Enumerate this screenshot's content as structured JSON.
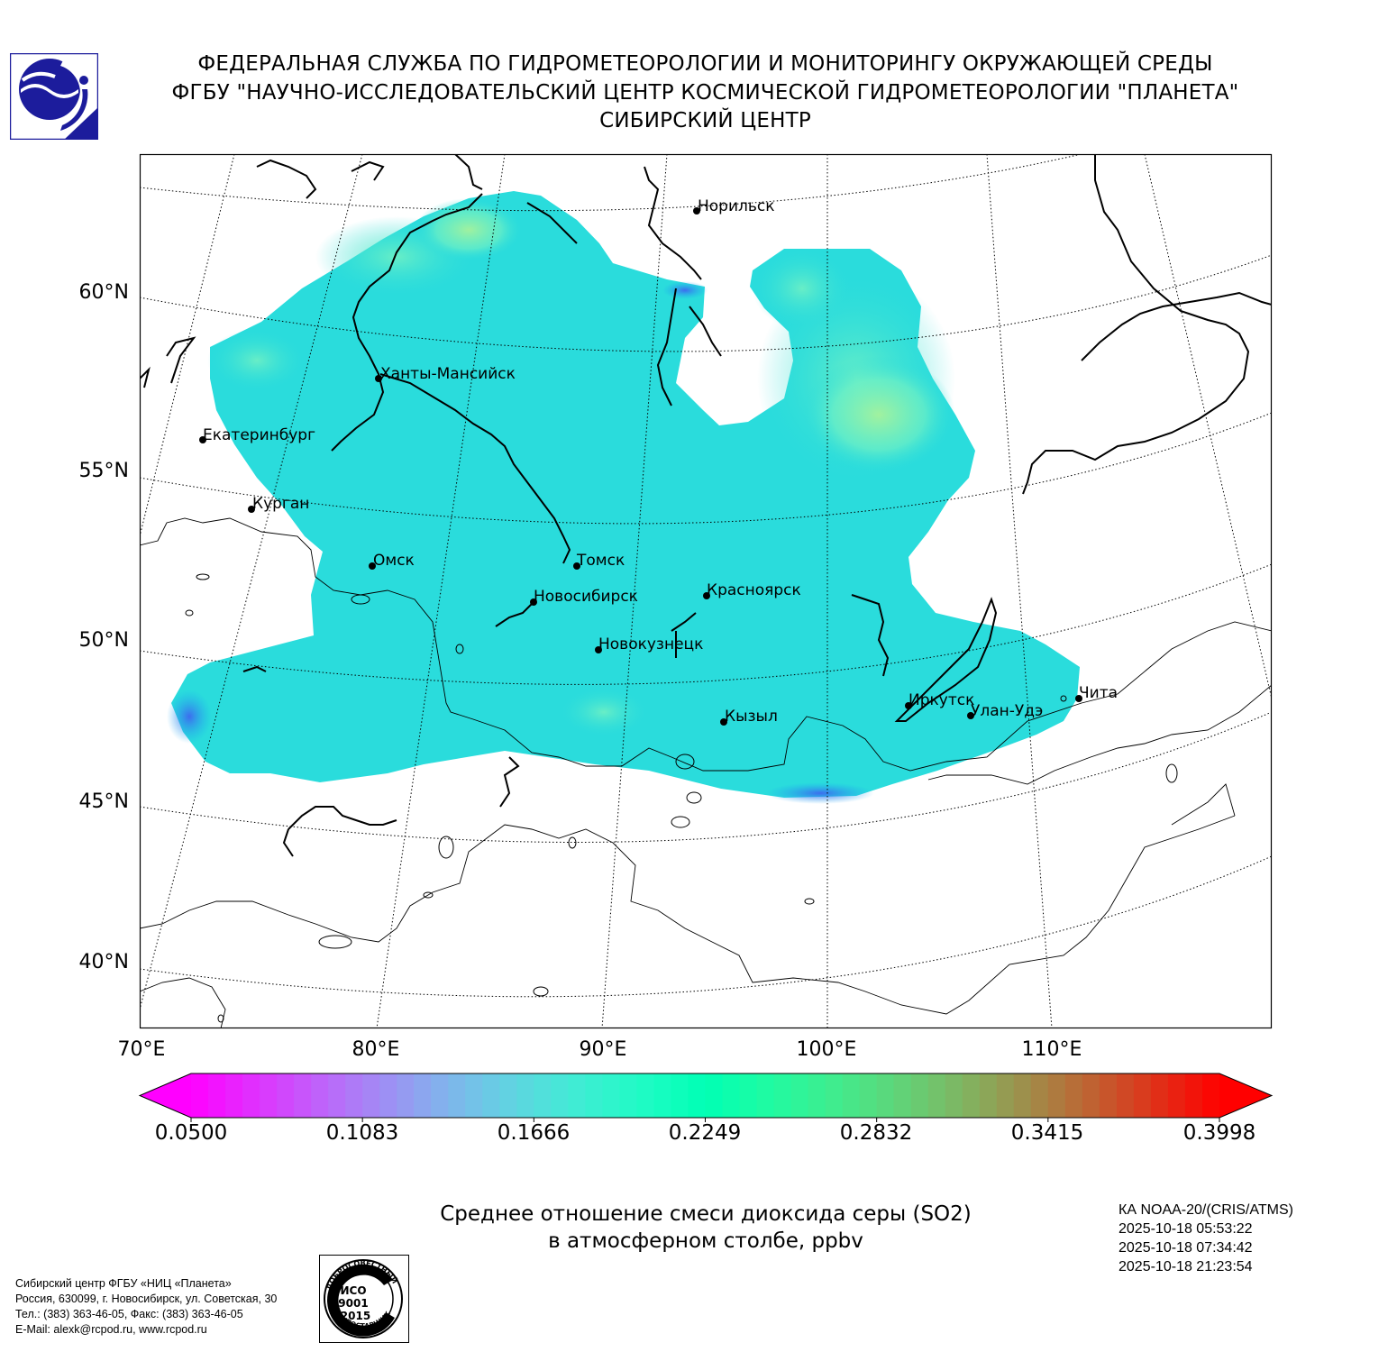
{
  "header": {
    "line1": "ФЕДЕРАЛЬНАЯ СЛУЖБА ПО ГИДРОМЕТЕОРОЛОГИИ И МОНИТОРИНГУ ОКРУЖАЮЩЕЙ СРЕДЫ",
    "line2": "ФГБУ \"НАУЧНО-ИССЛЕДОВАТЕЛЬСКИЙ ЦЕНТР КОСМИЧЕСКОЙ ГИДРОМЕТЕОРОЛОГИИ \"ПЛАНЕТА\"",
    "line3": "СИБИРСКИЙ ЦЕНТР"
  },
  "logo": {
    "icon": "planeta-logo-icon",
    "color": "#1c1c9c"
  },
  "map": {
    "lat_labels": [
      "60°N",
      "55°N",
      "50°N",
      "45°N",
      "40°N"
    ],
    "lon_labels": [
      "70°E",
      "80°E",
      "90°E",
      "100°E",
      "110°E"
    ],
    "cities": [
      {
        "name": "Норильск"
      },
      {
        "name": "Ханты-Мансийск"
      },
      {
        "name": "Екатеринбург"
      },
      {
        "name": "Курган"
      },
      {
        "name": "Омск"
      },
      {
        "name": "Томск"
      },
      {
        "name": "Новосибирск"
      },
      {
        "name": "Красноярск"
      },
      {
        "name": "Новокузнецк"
      },
      {
        "name": "Кызыл"
      },
      {
        "name": "Иркутск"
      },
      {
        "name": "Улан-Удэ"
      },
      {
        "name": "Чита"
      }
    ],
    "field_colors": {
      "main": "#2adcdc",
      "high": "#a6f29c",
      "mid": "#6ff0c4",
      "low": "#1aa8f0",
      "lowest": "#4060f0"
    }
  },
  "colorbar": {
    "ticks": [
      "0.0500",
      "0.1083",
      "0.1666",
      "0.2249",
      "0.2832",
      "0.3415",
      "0.3998"
    ],
    "min": 0.05,
    "max": 0.3998,
    "extend": "both",
    "colormap": "rainbow"
  },
  "product": {
    "line1": "Среднее отношение смеси диоксида серы (SO2)",
    "line2": "в атмосферном столбе, ppbv"
  },
  "satellite": {
    "name": "КА NOAA-20/(CRIS/ATMS)",
    "times": [
      "2025-10-18 05:53:22",
      "2025-10-18 07:34:42",
      "2025-10-18 21:23:54"
    ]
  },
  "contact": {
    "line1": "Сибирский центр ФГБУ «НИЦ «Планета»",
    "line2": "Россия, 630099, г. Новосибирск, ул. Советская, 30",
    "line3": "Тел.: (383) 363-46-05, Факс: (383) 363-46-05",
    "line4": "E-Mail: alexk@rcpod.ru, www.rcpod.ru"
  },
  "iso_badge": {
    "top": "ДОБРОСОВЕСТНЫЙ",
    "l1": "ИСО",
    "l2": "9001",
    "l3": "-2015",
    "bottom": "ПОСТАВЩИК"
  }
}
